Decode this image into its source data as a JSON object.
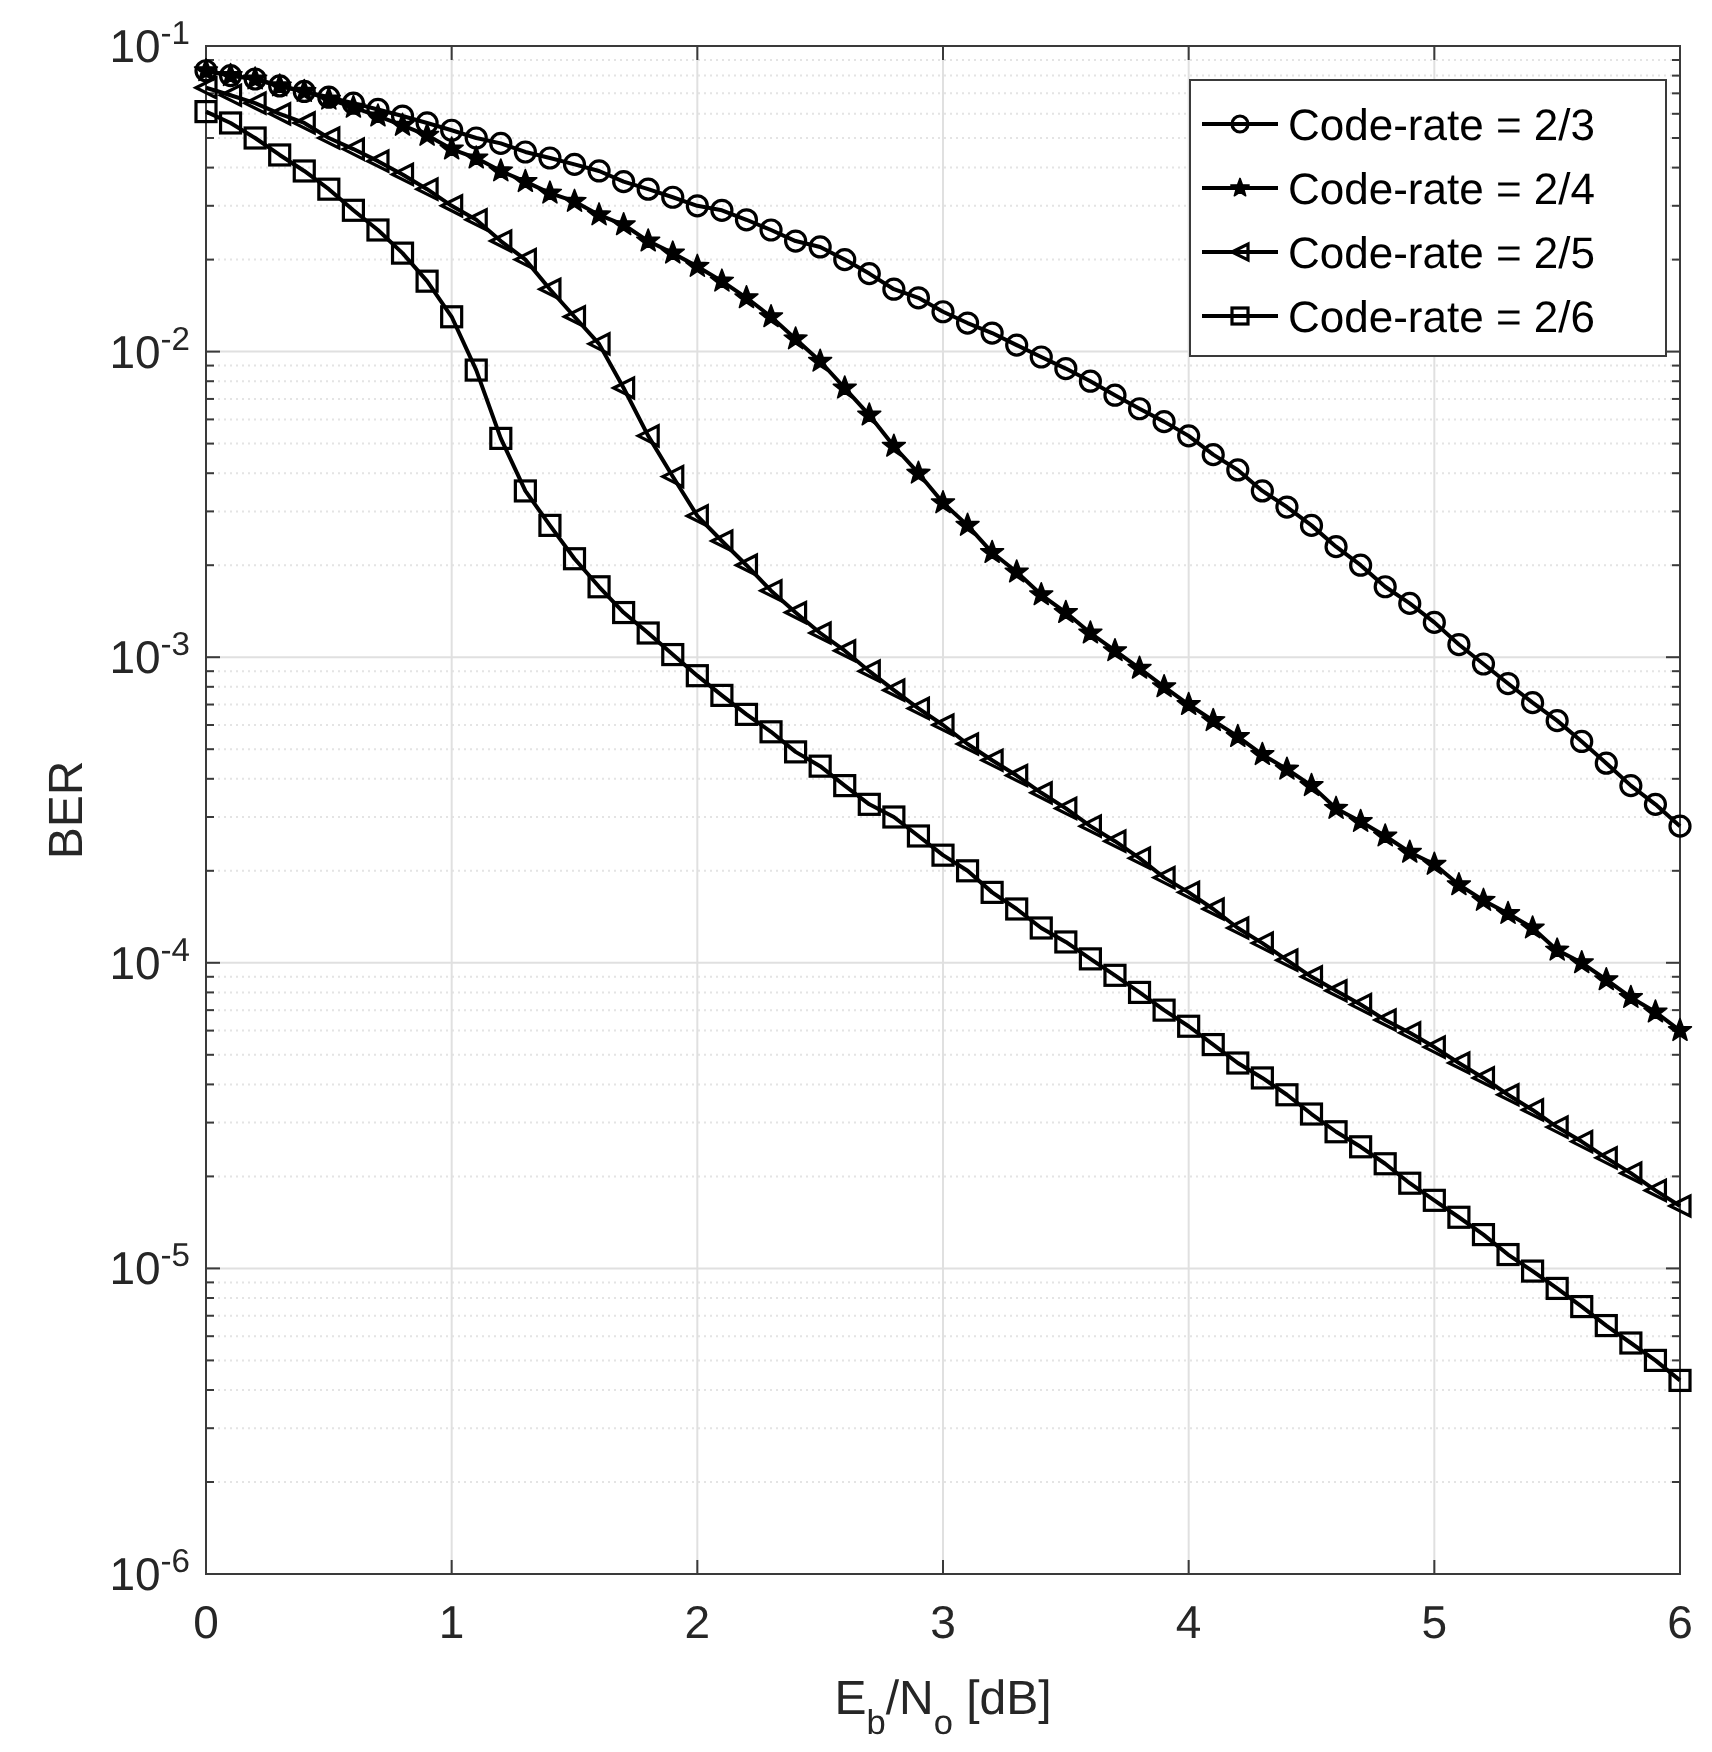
{
  "chart_data": {
    "type": "line",
    "xlabel": "E$_{b}$/N$_{o}$ [dB]",
    "ylabel": "BER",
    "log": "y",
    "grid": true,
    "legend": "top right",
    "line_style": "solid",
    "xlim": [
      0,
      6
    ],
    "xticks": [
      0,
      1,
      2,
      3,
      4,
      5,
      6
    ],
    "ylim": [
      1e-06,
      0.1
    ],
    "yticks": [
      {
        "value": 1e-06,
        "label": "10$^{-6}$"
      },
      {
        "value": 1e-05,
        "label": "10$^{-5}$"
      },
      {
        "value": 0.0001,
        "label": "10$^{-4}$"
      },
      {
        "value": 0.001,
        "label": "10$^{-3}$"
      },
      {
        "value": 0.01,
        "label": "10$^{-2}$"
      },
      {
        "value": 0.1,
        "label": "10$^{-1}$"
      }
    ],
    "x": [
      0,
      0.1,
      0.2,
      0.3,
      0.4,
      0.5,
      0.6,
      0.7,
      0.8,
      0.9,
      1,
      1.1,
      1.2,
      1.3,
      1.4,
      1.5,
      1.6,
      1.7,
      1.8,
      1.9,
      2,
      2.1,
      2.2,
      2.3,
      2.4,
      2.5,
      2.6,
      2.7,
      2.8,
      2.9,
      3,
      3.1,
      3.2,
      3.3,
      3.4,
      3.5,
      3.6,
      3.7,
      3.8,
      3.9,
      4,
      4.1,
      4.2,
      4.3,
      4.4,
      4.5,
      4.6,
      4.7,
      4.8,
      4.9,
      5,
      5.1,
      5.2,
      5.3,
      5.4,
      5.5,
      5.6,
      5.7,
      5.8,
      5.9,
      6
    ],
    "series": [
      {
        "name": "Code-rate = 2/3",
        "color": "#000000",
        "marker": "circle",
        "values": [
          0.083,
          0.08,
          0.078,
          0.074,
          0.071,
          0.068,
          0.065,
          0.062,
          0.059,
          0.056,
          0.053,
          0.05,
          0.048,
          0.045,
          0.043,
          0.041,
          0.039,
          0.036,
          0.034,
          0.032,
          0.03,
          0.029,
          0.027,
          0.025,
          0.023,
          0.022,
          0.02,
          0.018,
          0.016,
          0.015,
          0.0135,
          0.0124,
          0.0115,
          0.0105,
          0.0096,
          0.0088,
          0.008,
          0.0072,
          0.0065,
          0.0059,
          0.0053,
          0.0046,
          0.0041,
          0.0035,
          0.0031,
          0.0027,
          0.0023,
          0.002,
          0.0017,
          0.0015,
          0.0013,
          0.0011,
          0.00095,
          0.00082,
          0.00071,
          0.00062,
          0.00053,
          0.00045,
          0.00038,
          0.00033,
          0.00028
        ]
      },
      {
        "name": "Code-rate = 2/4",
        "color": "#000000",
        "marker": "star",
        "values": [
          0.083,
          0.08,
          0.078,
          0.074,
          0.071,
          0.067,
          0.063,
          0.059,
          0.055,
          0.051,
          0.046,
          0.043,
          0.039,
          0.036,
          0.033,
          0.031,
          0.028,
          0.026,
          0.023,
          0.021,
          0.019,
          0.017,
          0.015,
          0.013,
          0.011,
          0.0093,
          0.0076,
          0.0062,
          0.0049,
          0.004,
          0.0032,
          0.0027,
          0.0022,
          0.0019,
          0.0016,
          0.0014,
          0.0012,
          0.00105,
          0.00092,
          0.0008,
          0.0007,
          0.00062,
          0.00055,
          0.00048,
          0.00043,
          0.00038,
          0.00032,
          0.00029,
          0.00026,
          0.00023,
          0.00021,
          0.00018,
          0.00016,
          0.000145,
          0.00013,
          0.00011,
          0.0001,
          8.8e-05,
          7.7e-05,
          6.9e-05,
          6e-05
        ]
      },
      {
        "name": "Code-rate = 2/5",
        "color": "#000000",
        "marker": "triangle",
        "values": [
          0.073,
          0.069,
          0.065,
          0.06,
          0.056,
          0.05,
          0.046,
          0.042,
          0.038,
          0.034,
          0.03,
          0.027,
          0.023,
          0.02,
          0.016,
          0.013,
          0.0106,
          0.0076,
          0.0053,
          0.0039,
          0.0029,
          0.0024,
          0.002,
          0.00165,
          0.0014,
          0.0012,
          0.00105,
          0.0009,
          0.00078,
          0.00068,
          0.0006,
          0.00052,
          0.00046,
          0.00041,
          0.00036,
          0.00032,
          0.00028,
          0.00025,
          0.00022,
          0.00019,
          0.00017,
          0.00015,
          0.00013,
          0.000116,
          0.000102,
          9e-05,
          8.1e-05,
          7.3e-05,
          6.5e-05,
          5.9e-05,
          5.3e-05,
          4.7e-05,
          4.2e-05,
          3.7e-05,
          3.3e-05,
          2.9e-05,
          2.6e-05,
          2.3e-05,
          2.05e-05,
          1.8e-05,
          1.6e-05
        ]
      },
      {
        "name": "Code-rate = 2/6",
        "color": "#000000",
        "marker": "square",
        "values": [
          0.061,
          0.056,
          0.05,
          0.044,
          0.039,
          0.034,
          0.029,
          0.025,
          0.021,
          0.017,
          0.013,
          0.0087,
          0.0052,
          0.0035,
          0.0027,
          0.0021,
          0.0017,
          0.0014,
          0.0012,
          0.00102,
          0.00087,
          0.00075,
          0.00065,
          0.00057,
          0.00049,
          0.00044,
          0.00038,
          0.00033,
          0.0003,
          0.00026,
          0.000225,
          0.0002,
          0.00017,
          0.00015,
          0.00013,
          0.000117,
          0.000103,
          9.1e-05,
          8e-05,
          7e-05,
          6.2e-05,
          5.4e-05,
          4.7e-05,
          4.2e-05,
          3.7e-05,
          3.2e-05,
          2.8e-05,
          2.5e-05,
          2.2e-05,
          1.9e-05,
          1.67e-05,
          1.47e-05,
          1.29e-05,
          1.11e-05,
          9.8e-06,
          8.6e-06,
          7.5e-06,
          6.5e-06,
          5.7e-06,
          5e-06,
          4.3e-06
        ]
      }
    ]
  }
}
